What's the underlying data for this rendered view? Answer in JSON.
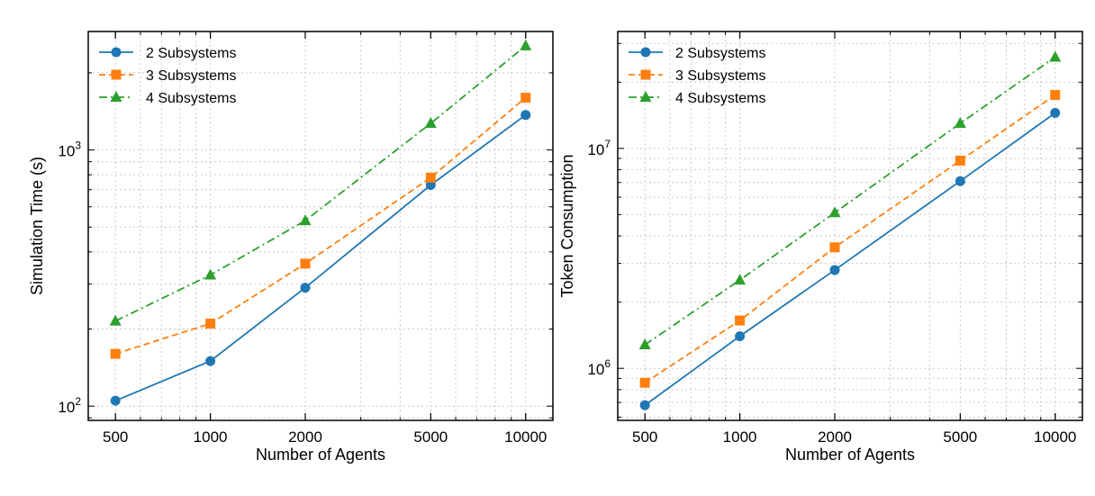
{
  "chart_data": [
    {
      "type": "line",
      "xscale": "log",
      "yscale": "log",
      "xlabel": "Number of Agents",
      "ylabel": "Simulation Time (s)",
      "x": [
        500,
        1000,
        2000,
        5000,
        10000
      ],
      "xticks": [
        "500",
        "1000",
        "2000",
        "5000",
        "10000"
      ],
      "xlim": [
        410,
        12200
      ],
      "ylim": [
        88,
        2900
      ],
      "yticks": [
        {
          "value": 100,
          "base": "10",
          "exp": "2"
        },
        {
          "value": 1000,
          "base": "10",
          "exp": "3"
        }
      ],
      "grid": true,
      "legend": "top-left",
      "series": [
        {
          "name": "2 Subsystems",
          "values": [
            105,
            150,
            290,
            730,
            1370
          ],
          "color": "#1f77b4",
          "marker": "circle",
          "dash": ""
        },
        {
          "name": "3 Subsystems",
          "values": [
            160,
            210,
            360,
            780,
            1600
          ],
          "color": "#ff7f0e",
          "marker": "square",
          "dash": "7,4"
        },
        {
          "name": "4 Subsystems",
          "values": [
            215,
            325,
            530,
            1270,
            2550
          ],
          "color": "#2ca02c",
          "marker": "triangle",
          "dash": "9,4,2,4"
        }
      ]
    },
    {
      "type": "line",
      "xscale": "log",
      "yscale": "log",
      "xlabel": "Number of Agents",
      "ylabel": "Token Consumption",
      "x": [
        500,
        1000,
        2000,
        5000,
        10000
      ],
      "xticks": [
        "500",
        "1000",
        "2000",
        "5000",
        "10000"
      ],
      "xlim": [
        410,
        12200
      ],
      "ylim": [
        580000,
        34000000
      ],
      "yticks": [
        {
          "value": 1000000,
          "base": "10",
          "exp": "6"
        },
        {
          "value": 10000000,
          "base": "10",
          "exp": "7"
        }
      ],
      "grid": true,
      "legend": "top-left",
      "series": [
        {
          "name": "2 Subsystems",
          "values": [
            680000,
            1400000,
            2800000,
            7100000,
            14500000
          ],
          "color": "#1f77b4",
          "marker": "circle",
          "dash": ""
        },
        {
          "name": "3 Subsystems",
          "values": [
            860000,
            1650000,
            3550000,
            8800000,
            17500000
          ],
          "color": "#ff7f0e",
          "marker": "square",
          "dash": "7,4"
        },
        {
          "name": "4 Subsystems",
          "values": [
            1280000,
            2520000,
            5100000,
            13000000,
            26000000
          ],
          "color": "#2ca02c",
          "marker": "triangle",
          "dash": "9,4,2,4"
        }
      ]
    }
  ]
}
